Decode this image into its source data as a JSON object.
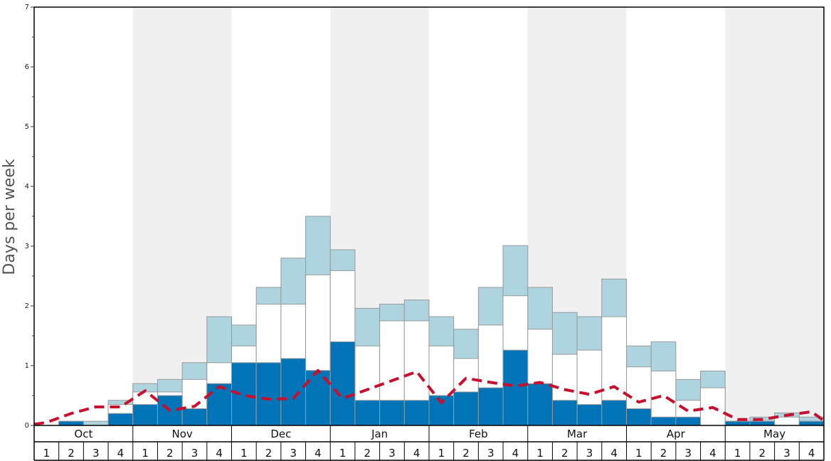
{
  "chart_data": {
    "type": "bar",
    "ylabel": "Days per week",
    "ylim": [
      0,
      7
    ],
    "yticks": [
      0,
      1,
      2,
      3,
      4,
      5,
      6,
      7
    ],
    "months": [
      "Oct",
      "Nov",
      "Dec",
      "Jan",
      "Feb",
      "Mar",
      "Apr",
      "May"
    ],
    "weeks": [
      "1",
      "2",
      "3",
      "4"
    ],
    "categories": [
      "Oct 1",
      "Oct 2",
      "Oct 3",
      "Oct 4",
      "Nov 1",
      "Nov 2",
      "Nov 3",
      "Nov 4",
      "Dec 1",
      "Dec 2",
      "Dec 3",
      "Dec 4",
      "Jan 1",
      "Jan 2",
      "Jan 3",
      "Jan 4",
      "Feb 1",
      "Feb 2",
      "Feb 3",
      "Feb 4",
      "Mar 1",
      "Mar 2",
      "Mar 3",
      "Mar 4",
      "Apr 1",
      "Apr 2",
      "Apr 3",
      "Apr 4",
      "May 1",
      "May 2",
      "May 3",
      "May 4"
    ],
    "series": [
      {
        "color": "#0074b7",
        "values": [
          0,
          0.07,
          0,
          0.2,
          0.35,
          0.5,
          0.28,
          0.7,
          1.05,
          1.05,
          1.12,
          0.92,
          1.4,
          0.42,
          0.42,
          0.42,
          0.5,
          0.56,
          0.63,
          1.26,
          0.7,
          0.42,
          0.35,
          0.42,
          0.28,
          0.14,
          0.14,
          0,
          0.07,
          0.07,
          0,
          0.07
        ]
      },
      {
        "color": "#ffffff",
        "values": [
          0,
          0.07,
          0,
          0.35,
          0.56,
          0.56,
          0.77,
          1.05,
          1.33,
          2.03,
          2.03,
          2.52,
          2.59,
          1.33,
          1.75,
          1.75,
          1.33,
          1.12,
          1.68,
          2.17,
          1.61,
          1.19,
          1.26,
          1.82,
          0.98,
          0.91,
          0.42,
          0.63,
          0.07,
          0.07,
          0.14,
          0.07
        ]
      },
      {
        "color": "#aed4e0",
        "values": [
          0,
          0.07,
          0.07,
          0.42,
          0.7,
          0.77,
          1.05,
          1.82,
          1.68,
          2.31,
          2.8,
          3.5,
          2.94,
          1.96,
          2.03,
          2.1,
          1.82,
          1.61,
          2.31,
          3.01,
          2.31,
          1.89,
          1.82,
          2.45,
          1.33,
          1.4,
          0.77,
          0.91,
          0.07,
          0.14,
          0.21,
          0.14
        ]
      }
    ],
    "trend": {
      "color": "#c8102e",
      "values": [
        0.05,
        0.2,
        0.31,
        0.31,
        0.58,
        0.25,
        0.32,
        0.65,
        0.5,
        0.44,
        0.45,
        0.92,
        0.45,
        0.6,
        0.75,
        0.9,
        0.38,
        0.79,
        0.72,
        0.66,
        0.72,
        0.6,
        0.52,
        0.65,
        0.39,
        0.5,
        0.24,
        0.3,
        0.1,
        0.1,
        0.17,
        0.23
      ]
    },
    "grid": false,
    "alternate_month_shading": "#f0f0f0"
  }
}
